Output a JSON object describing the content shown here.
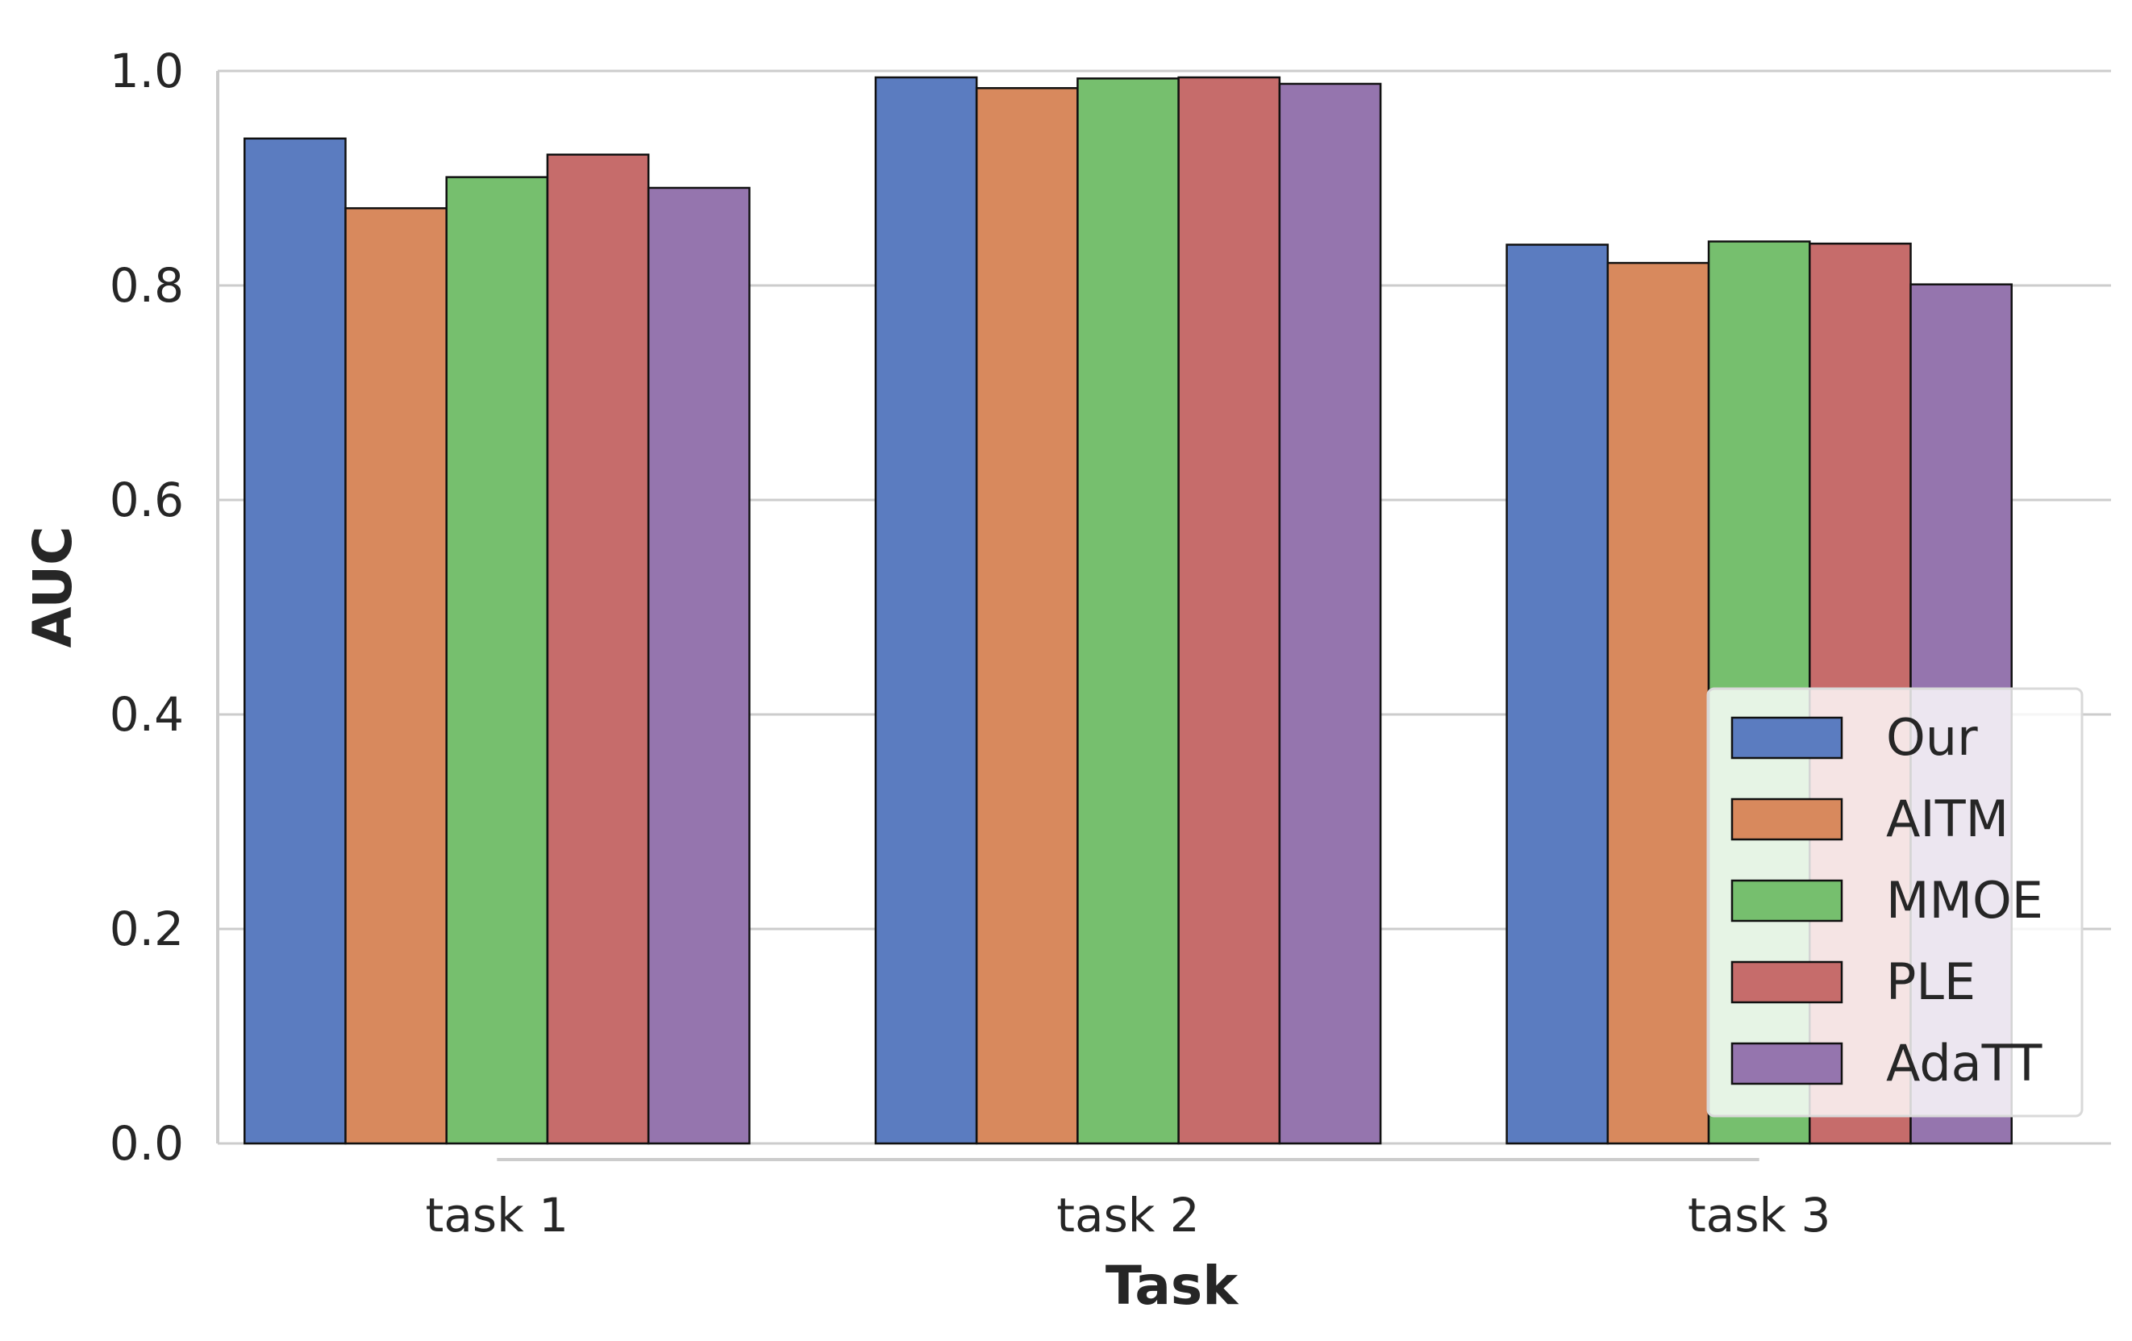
{
  "chart_data": {
    "type": "bar",
    "xlabel": "Task",
    "ylabel": "AUC",
    "categories": [
      "task 1",
      "task 2",
      "task 3"
    ],
    "series": [
      {
        "name": "Our",
        "color": "#5b7cc0",
        "values": [
          0.937,
          0.994,
          0.838
        ]
      },
      {
        "name": "AITM",
        "color": "#d8895d",
        "values": [
          0.872,
          0.984,
          0.821
        ]
      },
      {
        "name": "MMOE",
        "color": "#76bf6e",
        "values": [
          0.901,
          0.993,
          0.841
        ]
      },
      {
        "name": "PLE",
        "color": "#c66c6b",
        "values": [
          0.922,
          0.994,
          0.839
        ]
      },
      {
        "name": "AdaTT",
        "color": "#9575ae",
        "values": [
          0.891,
          0.988,
          0.801
        ]
      }
    ],
    "ylim": [
      0,
      1.0
    ],
    "yticks": [
      "0.0",
      "0.2",
      "0.4",
      "0.6",
      "0.8",
      "1.0"
    ],
    "grid": "horizontal",
    "legend_position": "lower-right"
  }
}
